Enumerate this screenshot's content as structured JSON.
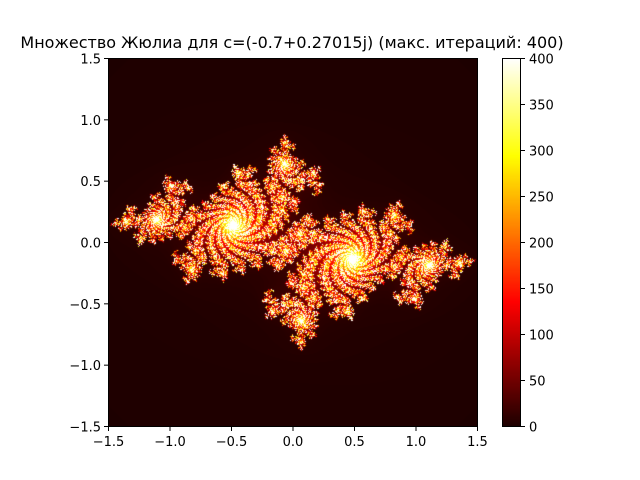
{
  "chart_data": {
    "type": "heatmap",
    "title": "Множество Жюлиа для c=(-0.7+0.27015j) (макс. итераций: 400)",
    "c": {
      "re": -0.7,
      "im": 0.27015
    },
    "max_iterations": 400,
    "colormap": "hot",
    "xlim": [
      -1.5,
      1.5
    ],
    "ylim": [
      -1.5,
      1.5
    ],
    "x_ticks": [
      {
        "value": -1.5,
        "label": "−1.5"
      },
      {
        "value": -1.0,
        "label": "−1.0"
      },
      {
        "value": -0.5,
        "label": "−0.5"
      },
      {
        "value": 0.0,
        "label": "0.0"
      },
      {
        "value": 0.5,
        "label": "0.5"
      },
      {
        "value": 1.0,
        "label": "1.0"
      },
      {
        "value": 1.5,
        "label": "1.5"
      }
    ],
    "y_ticks": [
      {
        "value": -1.5,
        "label": "−1.5"
      },
      {
        "value": -1.0,
        "label": "−1.0"
      },
      {
        "value": -0.5,
        "label": "−0.5"
      },
      {
        "value": 0.0,
        "label": "0.0"
      },
      {
        "value": 0.5,
        "label": "0.5"
      },
      {
        "value": 1.0,
        "label": "1.0"
      },
      {
        "value": 1.5,
        "label": "1.5"
      }
    ],
    "colorbar": {
      "range": [
        0,
        400
      ],
      "ticks": [
        {
          "value": 0,
          "label": "0"
        },
        {
          "value": 50,
          "label": "50"
        },
        {
          "value": 100,
          "label": "100"
        },
        {
          "value": 150,
          "label": "150"
        },
        {
          "value": 200,
          "label": "200"
        },
        {
          "value": 250,
          "label": "250"
        },
        {
          "value": 300,
          "label": "300"
        },
        {
          "value": 350,
          "label": "350"
        },
        {
          "value": 400,
          "label": "400"
        }
      ]
    },
    "grid": false
  }
}
